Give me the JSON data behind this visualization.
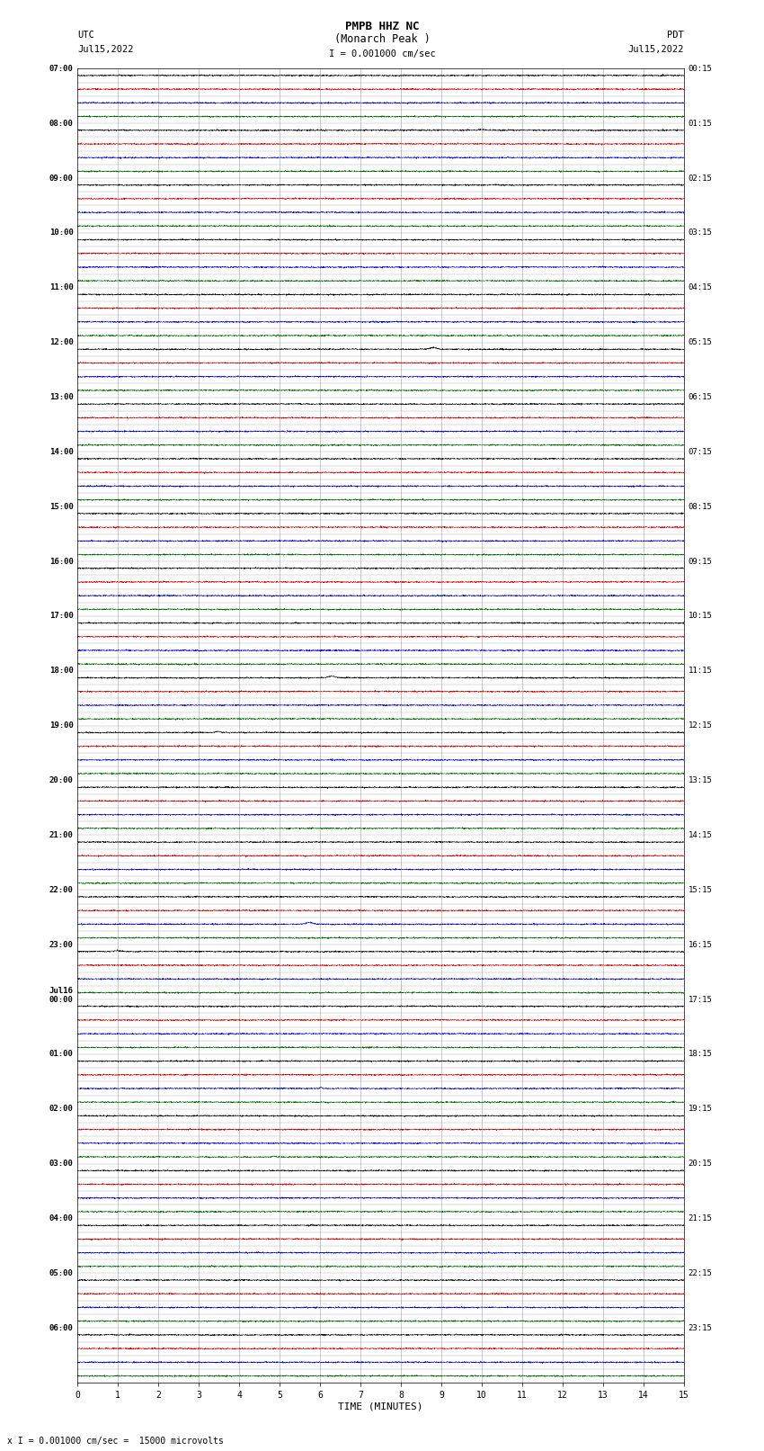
{
  "title_line1": "PMPB HHZ NC",
  "title_line2": "(Monarch Peak )",
  "scale_label": "I = 0.001000 cm/sec",
  "bottom_label": "x I = 0.001000 cm/sec =  15000 microvolts",
  "xlabel": "TIME (MINUTES)",
  "left_header_line1": "UTC",
  "left_header_line2": "Jul15,2022",
  "right_header_line1": "PDT",
  "right_header_line2": "Jul15,2022",
  "left_times": [
    "07:00",
    "",
    "",
    "",
    "08:00",
    "",
    "",
    "",
    "09:00",
    "",
    "",
    "",
    "10:00",
    "",
    "",
    "",
    "11:00",
    "",
    "",
    "",
    "12:00",
    "",
    "",
    "",
    "13:00",
    "",
    "",
    "",
    "14:00",
    "",
    "",
    "",
    "15:00",
    "",
    "",
    "",
    "16:00",
    "",
    "",
    "",
    "17:00",
    "",
    "",
    "",
    "18:00",
    "",
    "",
    "",
    "19:00",
    "",
    "",
    "",
    "20:00",
    "",
    "",
    "",
    "21:00",
    "",
    "",
    "",
    "22:00",
    "",
    "",
    "",
    "23:00",
    "",
    "",
    "",
    "Jul16\n00:00",
    "",
    "",
    "",
    "01:00",
    "",
    "",
    "",
    "02:00",
    "",
    "",
    "",
    "03:00",
    "",
    "",
    "",
    "04:00",
    "",
    "",
    "",
    "05:00",
    "",
    "",
    "",
    "06:00",
    "",
    "",
    ""
  ],
  "right_times": [
    "00:15",
    "",
    "",
    "",
    "01:15",
    "",
    "",
    "",
    "02:15",
    "",
    "",
    "",
    "03:15",
    "",
    "",
    "",
    "04:15",
    "",
    "",
    "",
    "05:15",
    "",
    "",
    "",
    "06:15",
    "",
    "",
    "",
    "07:15",
    "",
    "",
    "",
    "08:15",
    "",
    "",
    "",
    "09:15",
    "",
    "",
    "",
    "10:15",
    "",
    "",
    "",
    "11:15",
    "",
    "",
    "",
    "12:15",
    "",
    "",
    "",
    "13:15",
    "",
    "",
    "",
    "14:15",
    "",
    "",
    "",
    "15:15",
    "",
    "",
    "",
    "16:15",
    "",
    "",
    "",
    "17:15",
    "",
    "",
    "",
    "18:15",
    "",
    "",
    "",
    "19:15",
    "",
    "",
    "",
    "20:15",
    "",
    "",
    "",
    "21:15",
    "",
    "",
    "",
    "22:15",
    "",
    "",
    "",
    "23:15",
    "",
    "",
    ""
  ],
  "n_rows": 96,
  "n_minutes": 15,
  "trace_colors": [
    "black",
    "#cc0000",
    "#0000cc",
    "#006600"
  ],
  "bg_color": "white",
  "grid_color": "#888888",
  "noise_amplitude": 0.025,
  "figsize": [
    8.5,
    16.13
  ],
  "dpi": 100
}
